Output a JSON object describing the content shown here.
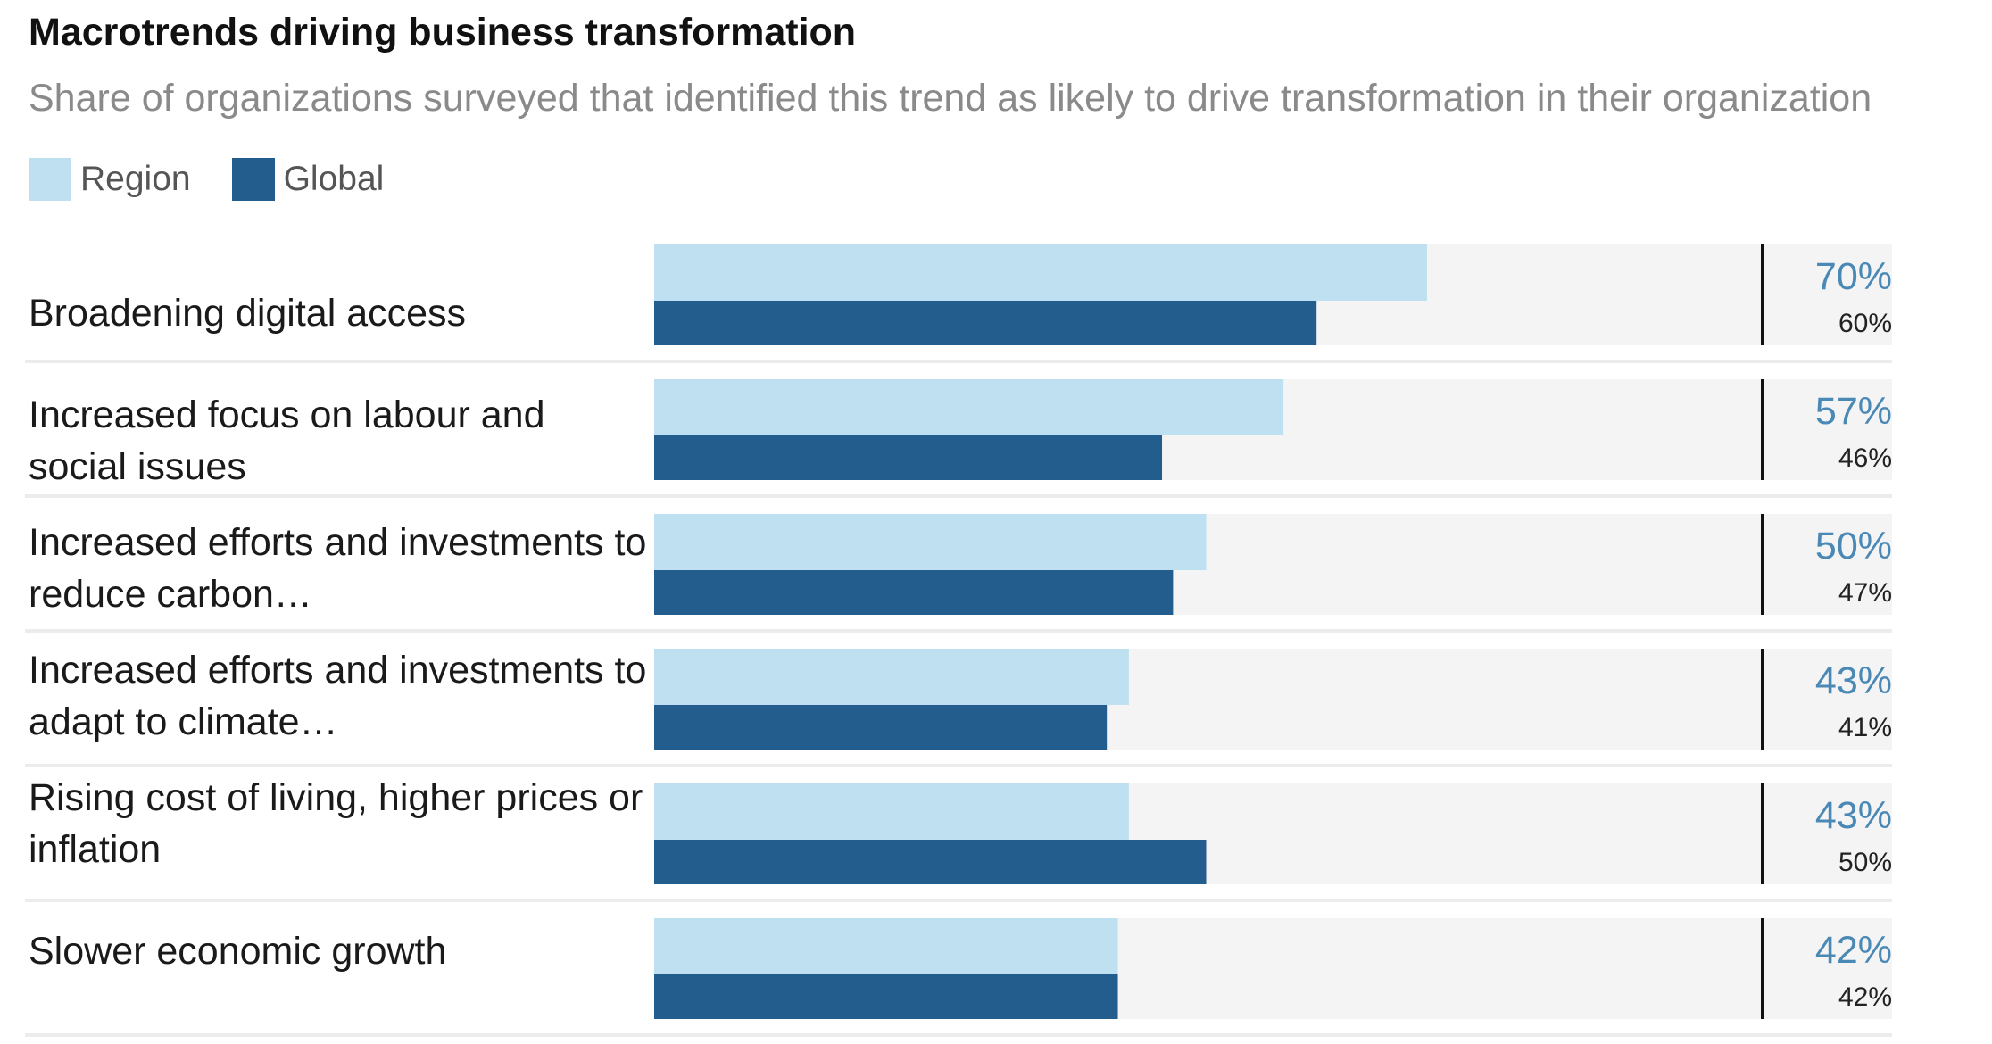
{
  "colors": {
    "region": "#bee0f0",
    "global": "#235d8e",
    "track": "#f4f4f4",
    "region_value": "#4a88b5",
    "global_value": "#222222",
    "separator": "#ececec",
    "axis_line": "#111111"
  },
  "chart_data": {
    "type": "bar",
    "orientation": "horizontal",
    "title": "Macrotrends driving business transformation",
    "subtitle": "Share of organizations surveyed that identified this trend as likely to drive transformation in their organization",
    "xlim": [
      0,
      100
    ],
    "legend": {
      "position": "top-left",
      "entries": [
        "Region",
        "Global"
      ]
    },
    "categories": [
      "Broadening digital access",
      "Increased focus on labour and social issues",
      "Increased efforts and investments to reduce carbon…",
      "Increased efforts and investments to adapt to climate…",
      "Rising cost of living, higher prices or inflation",
      "Slower economic growth"
    ],
    "series": [
      {
        "name": "Region",
        "values": [
          70,
          57,
          50,
          43,
          43,
          42
        ],
        "labels": [
          "70%",
          "57%",
          "50%",
          "43%",
          "43%",
          "42%"
        ]
      },
      {
        "name": "Global",
        "values": [
          60,
          46,
          47,
          41,
          50,
          42
        ],
        "labels": [
          "60%",
          "46%",
          "47%",
          "41%",
          "50%",
          "42%"
        ]
      }
    ]
  }
}
